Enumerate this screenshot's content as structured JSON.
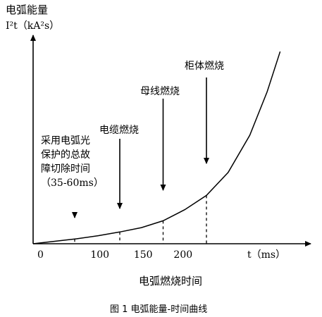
{
  "chart_data": {
    "type": "line",
    "title": "",
    "ylabel": "电弧能量",
    "ylabel_unit": "I²t（kA²s）",
    "xlabel_unit": "t（ms）",
    "xlabel": "电弧燃烧时间",
    "caption": "图 1  电弧能量-时间曲线",
    "x_ticks": [
      "0",
      "100",
      "150",
      "200"
    ],
    "y_ticks": [],
    "grid": false,
    "series": [
      {
        "x": [
          0,
          25,
          50,
          75,
          100,
          125,
          150,
          175,
          200,
          225,
          250,
          270,
          285
        ],
        "y": [
          0.0,
          0.04,
          0.08,
          0.13,
          0.19,
          0.26,
          0.37,
          0.55,
          0.78,
          1.15,
          1.75,
          2.45,
          3.1
        ]
      }
    ],
    "annotations": [
      {
        "lines": [
          "采用电弧光",
          "保护的总故",
          "障切除时间",
          "（35-60ms）"
        ],
        "x": 48
      },
      {
        "lines": [
          "电缆燃烧"
        ],
        "x": 100
      },
      {
        "lines": [
          "母线燃烧"
        ],
        "x": 150
      },
      {
        "lines": [
          "柜体燃烧"
        ],
        "x": 200
      }
    ]
  }
}
